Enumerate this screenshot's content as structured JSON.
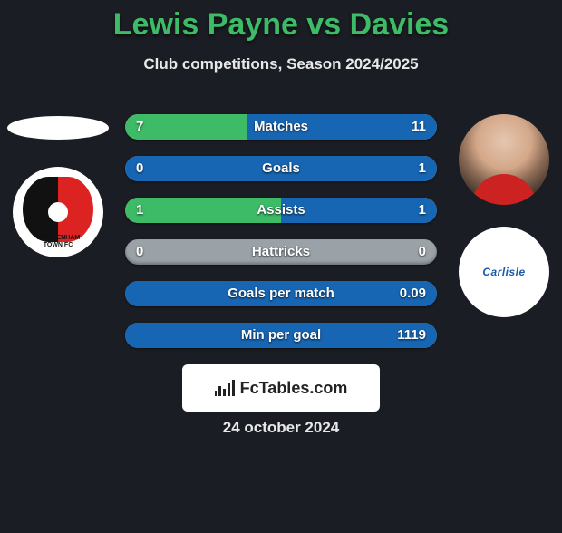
{
  "title": {
    "text": "Lewis Payne vs Davies",
    "color": "#3dbb67",
    "fontsize": 34
  },
  "subtitle": "Club competitions, Season 2024/2025",
  "date": "24 october 2024",
  "branding": "FcTables.com",
  "players": {
    "left": {
      "name": "Lewis Payne",
      "avatar_type": "blank"
    },
    "right": {
      "name": "Davies",
      "avatar_type": "photo"
    }
  },
  "clubs": {
    "left": {
      "name": "Cheltenham Town FC",
      "badge": "cheltenham"
    },
    "right": {
      "name": "Carlisle",
      "badge": "carlisle",
      "label_color": "#1a5aa8"
    }
  },
  "stats": {
    "bar_bg": "#9aa2a8",
    "left_fill_color": "#3dbb67",
    "right_fill_color": "#1766b3",
    "rows": [
      {
        "label": "Matches",
        "left": "7",
        "right": "11",
        "left_pct": 39,
        "right_pct": 61
      },
      {
        "label": "Goals",
        "left": "0",
        "right": "1",
        "left_pct": 0,
        "right_pct": 100
      },
      {
        "label": "Assists",
        "left": "1",
        "right": "1",
        "left_pct": 50,
        "right_pct": 50
      },
      {
        "label": "Hattricks",
        "left": "0",
        "right": "0",
        "left_pct": 0,
        "right_pct": 0
      },
      {
        "label": "Goals per match",
        "left": "",
        "right": "0.09",
        "left_pct": 0,
        "right_pct": 100
      },
      {
        "label": "Min per goal",
        "left": "",
        "right": "1119",
        "left_pct": 0,
        "right_pct": 100
      }
    ]
  }
}
